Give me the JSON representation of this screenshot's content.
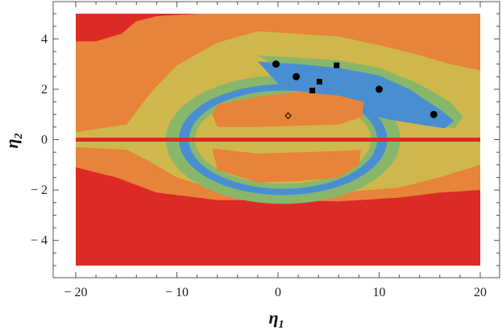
{
  "chart_data": {
    "type": "contour",
    "xlabel_main": "η",
    "xlabel_sub": "1",
    "ylabel_main": "η",
    "ylabel_sub": "2",
    "xlim": [
      -22,
      22
    ],
    "ylim": [
      -5.5,
      5.5
    ],
    "data_region": {
      "x": [
        -20,
        20
      ],
      "y": [
        -5,
        5
      ]
    },
    "xticks": [
      -20,
      -10,
      0,
      10,
      20
    ],
    "xtick_labels": [
      "− 20",
      "− 10",
      "0",
      "10",
      "20"
    ],
    "yticks": [
      -4,
      -2,
      0,
      2,
      4
    ],
    "ytick_labels": [
      "− 4",
      "− 2",
      "0",
      "2",
      "4"
    ],
    "levels": [
      {
        "name": "red",
        "color": "#dc2b26"
      },
      {
        "name": "orange",
        "color": "#e7843a"
      },
      {
        "name": "yellow",
        "color": "#cfb74b"
      },
      {
        "name": "green",
        "color": "#88b76c"
      },
      {
        "name": "blue",
        "color": "#4a8ed2"
      }
    ],
    "circle_points": [
      {
        "x": -0.2,
        "y": 3.0
      },
      {
        "x": 1.8,
        "y": 2.5
      },
      {
        "x": 10.0,
        "y": 2.0
      },
      {
        "x": 15.4,
        "y": 1.0
      }
    ],
    "square_points": [
      {
        "x": 5.8,
        "y": 2.95
      },
      {
        "x": 4.1,
        "y": 2.3
      },
      {
        "x": 3.4,
        "y": 1.95
      }
    ],
    "diamond_points": [
      {
        "x": 1.0,
        "y": 0.95
      }
    ]
  }
}
